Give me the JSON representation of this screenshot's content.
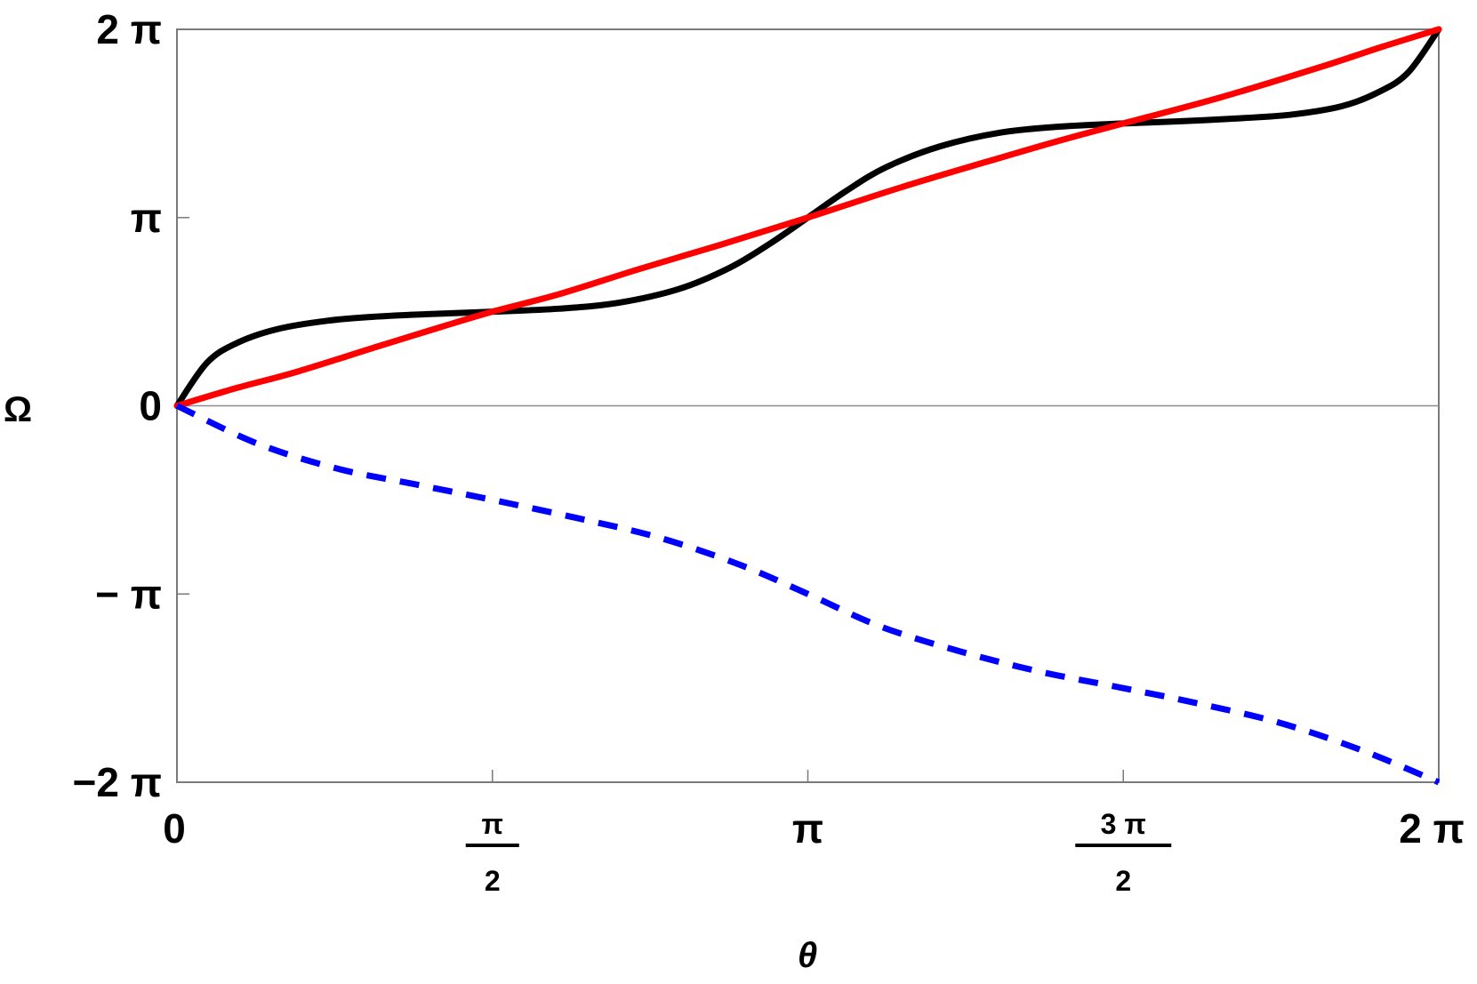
{
  "chart_data": {
    "type": "line",
    "xlabel": "θ",
    "ylabel": "Ω",
    "xlim": [
      0,
      6.283185307179586
    ],
    "ylim": [
      -6.283185307179586,
      6.283185307179586
    ],
    "grid": false,
    "x_ticks": [
      {
        "value": 0,
        "num": "0",
        "den": ""
      },
      {
        "value": 1.5707963267948966,
        "num": "π",
        "den": "2"
      },
      {
        "value": 3.141592653589793,
        "num": "π",
        "den": ""
      },
      {
        "value": 4.71238898038469,
        "num": "3 π",
        "den": "2"
      },
      {
        "value": 6.283185307179586,
        "num": "2 π",
        "den": ""
      }
    ],
    "y_ticks": [
      {
        "value": 6.283185307179586,
        "label": "2 π"
      },
      {
        "value": 3.141592653589793,
        "label": "π"
      },
      {
        "value": 0,
        "label": "0"
      },
      {
        "value": -3.141592653589793,
        "label": "− π"
      },
      {
        "value": -6.283185307179586,
        "label": "−2 π"
      }
    ],
    "series": [
      {
        "color": "#000000",
        "style": "solid",
        "points": [
          [
            0.0,
            0.0
          ],
          [
            0.15,
            0.72
          ],
          [
            0.3,
            1.05
          ],
          [
            0.5,
            1.28
          ],
          [
            0.75,
            1.42
          ],
          [
            1.0,
            1.49
          ],
          [
            1.25,
            1.53
          ],
          [
            1.5708,
            1.5708
          ],
          [
            1.9,
            1.62
          ],
          [
            2.2,
            1.72
          ],
          [
            2.5,
            1.95
          ],
          [
            2.75,
            2.3
          ],
          [
            2.95,
            2.7
          ],
          [
            3.1416,
            3.1416
          ],
          [
            3.33,
            3.58
          ],
          [
            3.53,
            3.98
          ],
          [
            3.8,
            4.33
          ],
          [
            4.1,
            4.56
          ],
          [
            4.4,
            4.66
          ],
          [
            4.7124,
            4.7124
          ],
          [
            5.0,
            4.75
          ],
          [
            5.3,
            4.8
          ],
          [
            5.55,
            4.86
          ],
          [
            5.8,
            5.0
          ],
          [
            5.98,
            5.23
          ],
          [
            6.13,
            5.56
          ],
          [
            6.2832,
            6.2832
          ]
        ]
      },
      {
        "color": "#ff0000",
        "style": "solid",
        "points": [
          [
            0.0,
            0.0
          ],
          [
            0.3,
            0.3
          ],
          [
            0.6,
            0.57
          ],
          [
            1.0,
            0.99
          ],
          [
            1.3,
            1.3
          ],
          [
            1.5708,
            1.5708
          ],
          [
            1.9,
            1.86
          ],
          [
            2.3,
            2.28
          ],
          [
            2.7,
            2.68
          ],
          [
            3.1416,
            3.1416
          ],
          [
            3.6,
            3.64
          ],
          [
            4.1,
            4.14
          ],
          [
            4.4,
            4.43
          ],
          [
            4.7124,
            4.7124
          ],
          [
            5.2,
            5.15
          ],
          [
            5.7,
            5.66
          ],
          [
            6.0,
            5.99
          ],
          [
            6.2832,
            6.2832
          ]
        ]
      },
      {
        "color": "#0000ff",
        "style": "dashed",
        "points": [
          [
            0.0,
            0.0
          ],
          [
            0.4,
            -0.63
          ],
          [
            0.8,
            -1.05
          ],
          [
            1.2,
            -1.32
          ],
          [
            1.5708,
            -1.5708
          ],
          [
            2.0,
            -1.88
          ],
          [
            2.4,
            -2.2
          ],
          [
            2.8,
            -2.65
          ],
          [
            3.1416,
            -3.1416
          ],
          [
            3.5,
            -3.68
          ],
          [
            3.9,
            -4.1
          ],
          [
            4.3,
            -4.44
          ],
          [
            4.7124,
            -4.7124
          ],
          [
            5.1,
            -4.98
          ],
          [
            5.5,
            -5.3
          ],
          [
            5.9,
            -5.75
          ],
          [
            6.2832,
            -6.2832
          ]
        ]
      }
    ]
  }
}
